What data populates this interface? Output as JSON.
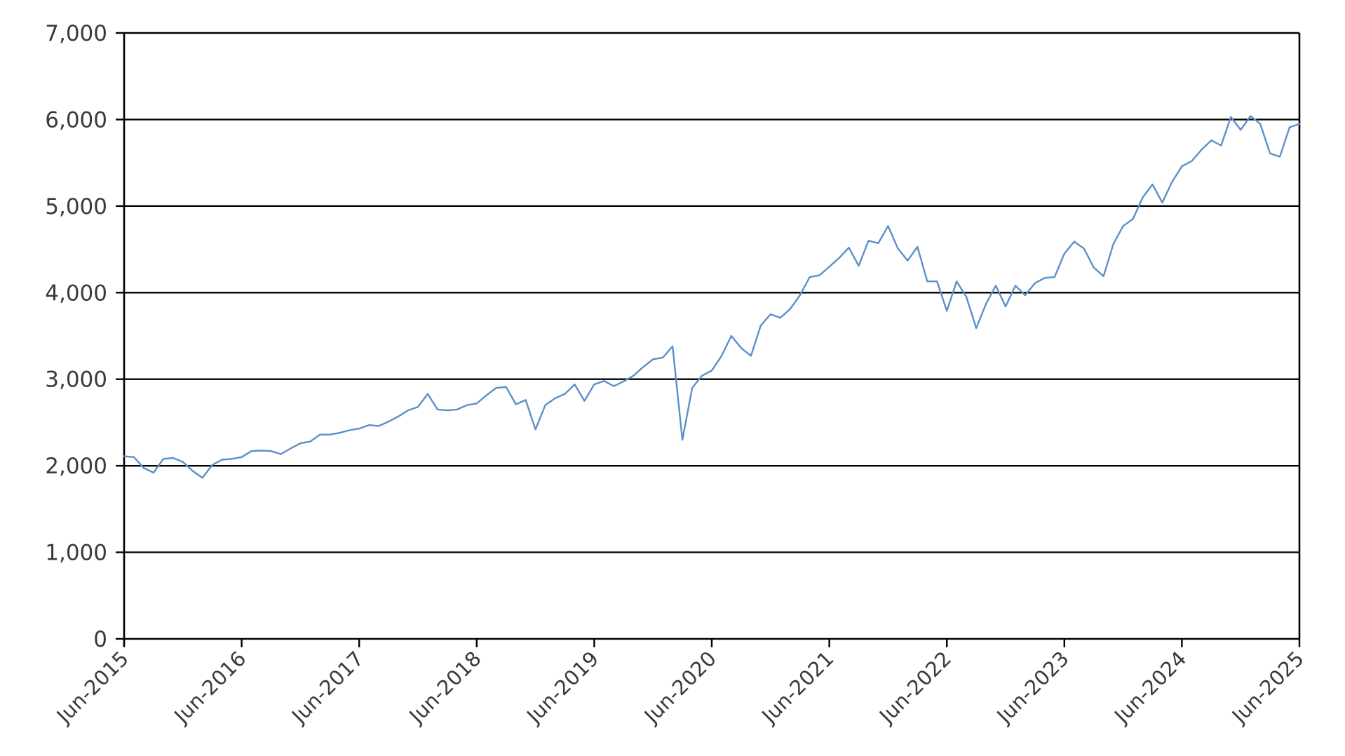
{
  "chart_data": {
    "type": "line",
    "title": "",
    "xlabel": "",
    "ylabel": "",
    "xlim": [
      "2015-06",
      "2025-06"
    ],
    "ylim": [
      0,
      7000
    ],
    "grid": true,
    "legend": "none",
    "y_ticks": [
      0,
      1000,
      2000,
      3000,
      4000,
      5000,
      6000,
      7000
    ],
    "y_tick_labels": [
      "0",
      "1,000",
      "2,000",
      "3,000",
      "4,000",
      "5,000",
      "6,000",
      "7,000"
    ],
    "x_tick_labels": [
      "Jun-2015",
      "Jun-2016",
      "Jun-2017",
      "Jun-2018",
      "Jun-2019",
      "Jun-2020",
      "Jun-2021",
      "Jun-2022",
      "Jun-2023",
      "Jun-2024",
      "Jun-2025"
    ],
    "series": [
      {
        "color": "#5b8fc9",
        "points": [
          [
            "2015-06",
            2110
          ],
          [
            "2015-07",
            2100
          ],
          [
            "2015-08",
            1975
          ],
          [
            "2015-09",
            1920
          ],
          [
            "2015-10",
            2080
          ],
          [
            "2015-11",
            2090
          ],
          [
            "2015-12",
            2045
          ],
          [
            "2016-01",
            1940
          ],
          [
            "2016-02",
            1860
          ],
          [
            "2016-03",
            2010
          ],
          [
            "2016-04",
            2070
          ],
          [
            "2016-05",
            2080
          ],
          [
            "2016-06",
            2100
          ],
          [
            "2016-07",
            2170
          ],
          [
            "2016-08",
            2175
          ],
          [
            "2016-09",
            2170
          ],
          [
            "2016-10",
            2135
          ],
          [
            "2016-11",
            2200
          ],
          [
            "2016-12",
            2260
          ],
          [
            "2017-01",
            2280
          ],
          [
            "2017-02",
            2360
          ],
          [
            "2017-03",
            2360
          ],
          [
            "2017-04",
            2380
          ],
          [
            "2017-05",
            2410
          ],
          [
            "2017-06",
            2430
          ],
          [
            "2017-07",
            2470
          ],
          [
            "2017-08",
            2460
          ],
          [
            "2017-09",
            2510
          ],
          [
            "2017-10",
            2570
          ],
          [
            "2017-11",
            2640
          ],
          [
            "2017-12",
            2680
          ],
          [
            "2018-01",
            2830
          ],
          [
            "2018-02",
            2650
          ],
          [
            "2018-03",
            2640
          ],
          [
            "2018-04",
            2650
          ],
          [
            "2018-05",
            2700
          ],
          [
            "2018-06",
            2720
          ],
          [
            "2018-07",
            2815
          ],
          [
            "2018-08",
            2900
          ],
          [
            "2018-09",
            2910
          ],
          [
            "2018-10",
            2710
          ],
          [
            "2018-11",
            2760
          ],
          [
            "2018-12",
            2420
          ],
          [
            "2019-01",
            2700
          ],
          [
            "2019-02",
            2780
          ],
          [
            "2019-03",
            2830
          ],
          [
            "2019-04",
            2940
          ],
          [
            "2019-05",
            2750
          ],
          [
            "2019-06",
            2940
          ],
          [
            "2019-07",
            2980
          ],
          [
            "2019-08",
            2920
          ],
          [
            "2019-09",
            2975
          ],
          [
            "2019-10",
            3040
          ],
          [
            "2019-11",
            3140
          ],
          [
            "2019-12",
            3230
          ],
          [
            "2020-01",
            3250
          ],
          [
            "2020-02",
            3380
          ],
          [
            "2020-03",
            2300
          ],
          [
            "2020-04",
            2900
          ],
          [
            "2020-05",
            3040
          ],
          [
            "2020-06",
            3100
          ],
          [
            "2020-07",
            3270
          ],
          [
            "2020-08",
            3500
          ],
          [
            "2020-09",
            3360
          ],
          [
            "2020-10",
            3270
          ],
          [
            "2020-11",
            3620
          ],
          [
            "2020-12",
            3750
          ],
          [
            "2021-01",
            3710
          ],
          [
            "2021-02",
            3810
          ],
          [
            "2021-03",
            3970
          ],
          [
            "2021-04",
            4180
          ],
          [
            "2021-05",
            4200
          ],
          [
            "2021-06",
            4300
          ],
          [
            "2021-07",
            4400
          ],
          [
            "2021-08",
            4520
          ],
          [
            "2021-09",
            4310
          ],
          [
            "2021-10",
            4600
          ],
          [
            "2021-11",
            4570
          ],
          [
            "2021-12",
            4770
          ],
          [
            "2022-01",
            4510
          ],
          [
            "2022-02",
            4370
          ],
          [
            "2022-03",
            4530
          ],
          [
            "2022-04",
            4130
          ],
          [
            "2022-05",
            4130
          ],
          [
            "2022-06",
            3790
          ],
          [
            "2022-07",
            4130
          ],
          [
            "2022-08",
            3950
          ],
          [
            "2022-09",
            3590
          ],
          [
            "2022-10",
            3870
          ],
          [
            "2022-11",
            4080
          ],
          [
            "2022-12",
            3840
          ],
          [
            "2023-01",
            4080
          ],
          [
            "2023-02",
            3970
          ],
          [
            "2023-03",
            4110
          ],
          [
            "2023-04",
            4170
          ],
          [
            "2023-05",
            4180
          ],
          [
            "2023-06",
            4450
          ],
          [
            "2023-07",
            4590
          ],
          [
            "2023-08",
            4510
          ],
          [
            "2023-09",
            4290
          ],
          [
            "2023-10",
            4190
          ],
          [
            "2023-11",
            4560
          ],
          [
            "2023-12",
            4770
          ],
          [
            "2024-01",
            4850
          ],
          [
            "2024-02",
            5100
          ],
          [
            "2024-03",
            5250
          ],
          [
            "2024-04",
            5040
          ],
          [
            "2024-05",
            5280
          ],
          [
            "2024-06",
            5460
          ],
          [
            "2024-07",
            5520
          ],
          [
            "2024-08",
            5650
          ],
          [
            "2024-09",
            5760
          ],
          [
            "2024-10",
            5700
          ],
          [
            "2024-11",
            6030
          ],
          [
            "2024-12",
            5880
          ],
          [
            "2025-01",
            6040
          ],
          [
            "2025-02",
            5950
          ],
          [
            "2025-03",
            5610
          ],
          [
            "2025-04",
            5570
          ],
          [
            "2025-05",
            5910
          ],
          [
            "2025-06",
            5950
          ]
        ]
      }
    ]
  }
}
